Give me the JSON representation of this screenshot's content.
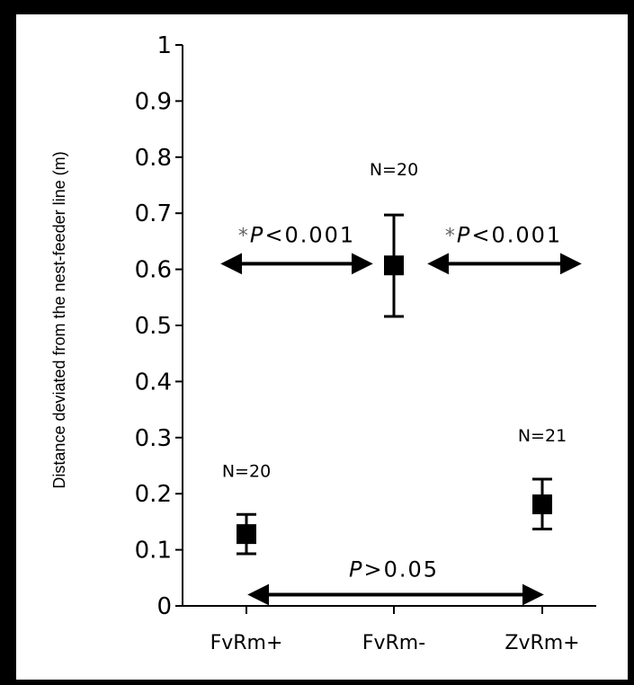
{
  "chart_data": {
    "type": "scatter",
    "title": "",
    "ylabel": "Distance deviated from the nest-feeder line (m)",
    "xlabel": "",
    "ylim": [
      0,
      1
    ],
    "yticks": [
      0,
      0.1,
      0.2,
      0.3,
      0.4,
      0.5,
      0.6,
      0.7,
      0.8,
      0.9,
      1
    ],
    "ytick_labels": [
      "0",
      "0.1",
      "0.2",
      "0.3",
      "0.4",
      "0.5",
      "0.6",
      "0.7",
      "0.8",
      "0.9",
      "1"
    ],
    "categories": [
      "FvRm+",
      "FvRm-",
      "ZvRm+"
    ],
    "values": [
      0.128,
      0.607,
      0.181
    ],
    "err_low": [
      0.093,
      0.516,
      0.137
    ],
    "err_high": [
      0.163,
      0.697,
      0.226
    ],
    "n_labels": [
      "N=20",
      "N=20",
      "N=21"
    ],
    "comparisons": [
      {
        "from": "FvRm+",
        "to": "FvRm-",
        "star": "*",
        "italic": "P",
        "text": "<0.001"
      },
      {
        "from": "FvRm-",
        "to": "ZvRm+",
        "star": "*",
        "italic": "P",
        "text": "<0.001"
      },
      {
        "from": "FvRm+",
        "to": "ZvRm+",
        "star": "",
        "italic": "P",
        "text": ">0.05"
      }
    ],
    "grid": false,
    "marker_color": "#000000"
  }
}
